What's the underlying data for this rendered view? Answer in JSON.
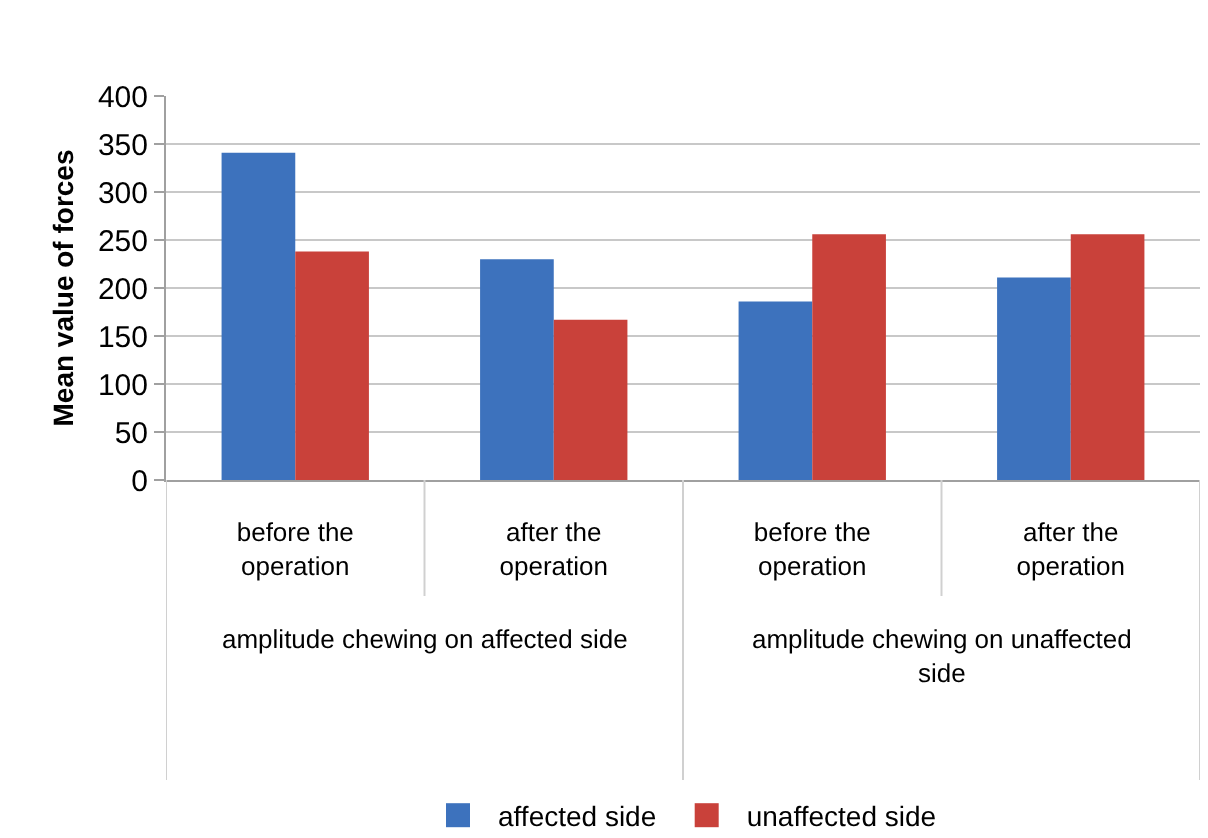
{
  "chart_data": {
    "type": "bar",
    "categories": [
      "before the operation",
      "after the operation",
      "before the operation",
      "after the operation"
    ],
    "series": [
      {
        "name": "affected side",
        "color": "#3d72bd",
        "values": [
          341,
          230,
          186,
          211
        ]
      },
      {
        "name": "unaffected side",
        "color": "#c9413a",
        "values": [
          238,
          167,
          256,
          256
        ]
      }
    ],
    "ylabel": "Mean value of forces",
    "ylim": [
      0,
      400
    ],
    "yticks": [
      0,
      50,
      100,
      150,
      200,
      250,
      300,
      350,
      400
    ],
    "grid": "y",
    "legend": "bottom",
    "annotations": [
      "amplitude chewing on affected side",
      "amplitude chewing on unaffected side"
    ]
  }
}
